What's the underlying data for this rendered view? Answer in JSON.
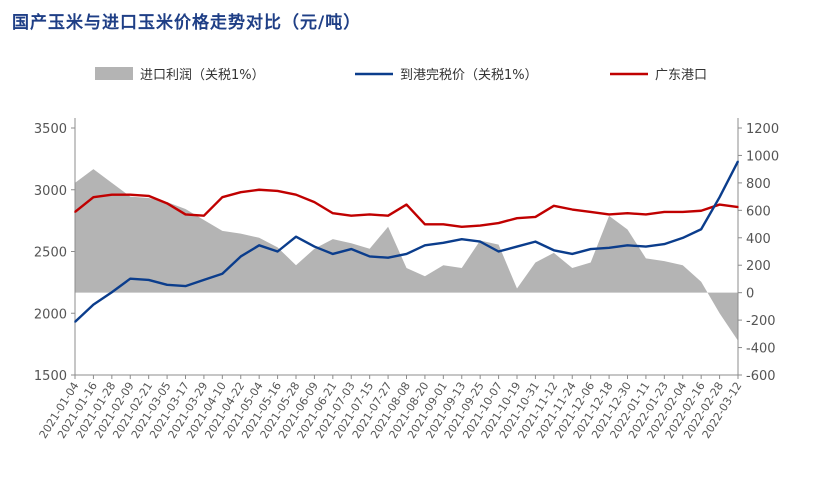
{
  "chart_data": {
    "type": "line",
    "title": "国产玉米与进口玉米价格走势对比（元/吨）",
    "legend": [
      "进口利润（关税1%）",
      "到港完税价（关税1%）",
      "广东港口"
    ],
    "legend_placement": "top",
    "colors": {
      "profit": "#b4b4b4",
      "landed": "#0b3d8c",
      "guangdong": "#c00000"
    },
    "y_left": {
      "lim": [
        1500,
        3500
      ],
      "ticks": [
        1500,
        2000,
        2500,
        3000,
        3500
      ]
    },
    "y_right": {
      "lim": [
        -600,
        1200
      ],
      "ticks": [
        -600,
        -400,
        -200,
        0,
        200,
        400,
        600,
        800,
        1000,
        1200
      ]
    },
    "x_ticks": [
      "2021-01-04",
      "2021-01-16",
      "2021-01-28",
      "2021-02-09",
      "2021-02-21",
      "2021-03-05",
      "2021-03-17",
      "2021-03-29",
      "2021-04-10",
      "2021-04-22",
      "2021-05-04",
      "2021-05-16",
      "2021-05-28",
      "2021-06-09",
      "2021-06-21",
      "2021-07-03",
      "2021-07-15",
      "2021-07-27",
      "2021-08-08",
      "2021-08-20",
      "2021-09-01",
      "2021-09-13",
      "2021-09-25",
      "2021-10-07",
      "2021-10-19",
      "2021-10-31",
      "2021-11-12",
      "2021-11-24",
      "2021-12-06",
      "2021-12-18",
      "2021-12-30",
      "2022-01-11",
      "2022-01-23",
      "2022-02-04",
      "2022-02-16",
      "2022-02-28",
      "2022-03-12"
    ],
    "series": [
      {
        "name": "进口利润（关税1%）",
        "axis": "right",
        "kind": "area",
        "x": [
          0,
          1,
          2,
          3,
          4,
          5,
          6,
          7,
          8,
          9,
          10,
          11,
          12,
          13,
          14,
          15,
          16,
          17,
          18,
          19,
          20,
          21,
          22,
          23,
          24,
          25,
          26,
          27,
          28,
          29,
          30,
          31,
          32,
          33,
          34,
          35,
          36
        ],
        "y": [
          800,
          900,
          800,
          700,
          690,
          660,
          610,
          530,
          450,
          430,
          400,
          330,
          200,
          320,
          390,
          360,
          320,
          480,
          180,
          120,
          200,
          180,
          380,
          350,
          30,
          220,
          290,
          180,
          220,
          560,
          460,
          250,
          230,
          200,
          80,
          -150,
          -350
        ]
      },
      {
        "name": "到港完税价（关税1%）",
        "axis": "left",
        "kind": "line",
        "x": [
          0,
          1,
          2,
          3,
          4,
          5,
          6,
          7,
          8,
          9,
          10,
          11,
          12,
          13,
          14,
          15,
          16,
          17,
          18,
          19,
          20,
          21,
          22,
          23,
          24,
          25,
          26,
          27,
          28,
          29,
          30,
          31,
          32,
          33,
          34,
          35,
          36
        ],
        "y": [
          1930,
          2070,
          2170,
          2280,
          2270,
          2230,
          2220,
          2270,
          2320,
          2460,
          2550,
          2500,
          2620,
          2540,
          2480,
          2520,
          2460,
          2450,
          2480,
          2550,
          2570,
          2600,
          2580,
          2500,
          2540,
          2580,
          2510,
          2480,
          2520,
          2530,
          2550,
          2540,
          2560,
          2610,
          2680,
          2940,
          3230
        ]
      },
      {
        "name": "广东港口",
        "axis": "left",
        "kind": "line",
        "x": [
          0,
          1,
          2,
          3,
          4,
          5,
          6,
          7,
          8,
          9,
          10,
          11,
          12,
          13,
          14,
          15,
          16,
          17,
          18,
          19,
          20,
          21,
          22,
          23,
          24,
          25,
          26,
          27,
          28,
          29,
          30,
          31,
          32,
          33,
          34,
          35,
          36
        ],
        "y": [
          2820,
          2940,
          2960,
          2960,
          2950,
          2890,
          2800,
          2790,
          2940,
          2980,
          3000,
          2990,
          2960,
          2900,
          2810,
          2790,
          2800,
          2790,
          2880,
          2720,
          2720,
          2700,
          2710,
          2730,
          2770,
          2780,
          2870,
          2840,
          2820,
          2800,
          2810,
          2800,
          2820,
          2820,
          2830,
          2880,
          2860
        ]
      }
    ]
  }
}
